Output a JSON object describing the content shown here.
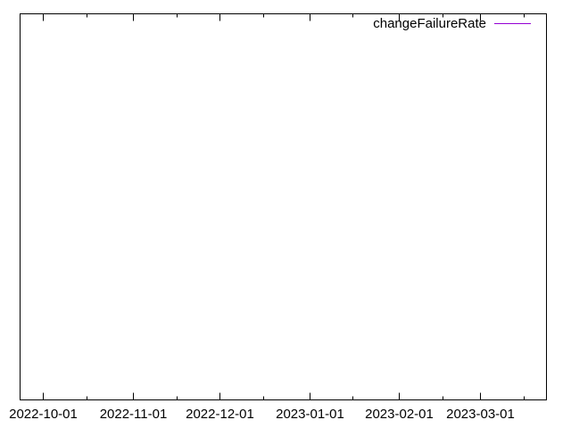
{
  "chart_data": {
    "type": "line",
    "title": "",
    "xlabel": "",
    "ylabel": "",
    "x_axis_type": "date",
    "xlim": [
      "2022-09-23",
      "2023-03-24"
    ],
    "x_ticks": [
      "2022-10-01",
      "2022-11-01",
      "2022-12-01",
      "2023-01-01",
      "2023-02-01",
      "2023-03-01"
    ],
    "grid": false,
    "legend_position": "top-right",
    "series": [
      {
        "name": "changeFailureRate",
        "color": "#9400d3",
        "x": [],
        "y": []
      }
    ]
  }
}
